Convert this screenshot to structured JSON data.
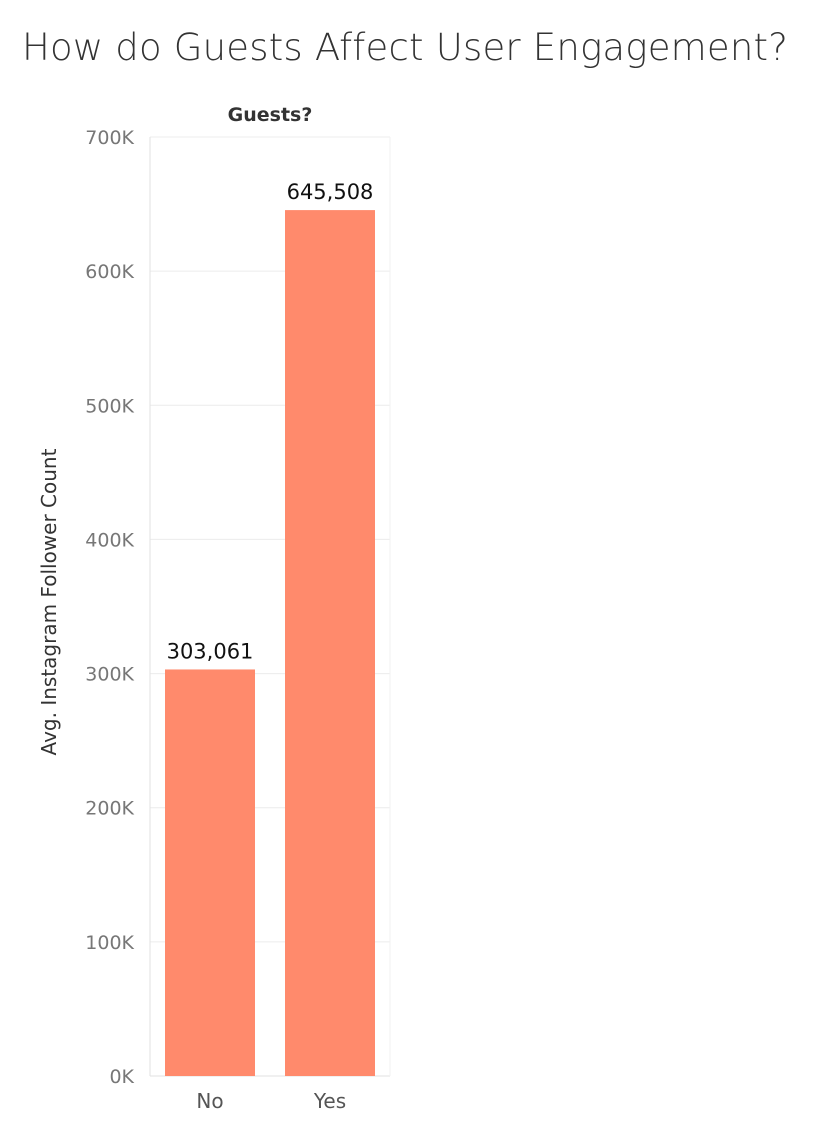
{
  "chart_data": {
    "type": "bar",
    "title": "How do Guests Affect User Engagement?",
    "column_header": "Guests?",
    "ylabel": "Avg. Instagram Follower Count",
    "xlabel": "",
    "categories": [
      "No",
      "Yes"
    ],
    "values": [
      303061,
      645508
    ],
    "value_labels": [
      "303,061",
      "645,508"
    ],
    "ylim": [
      0,
      700000
    ],
    "yticks": [
      0,
      100000,
      200000,
      300000,
      400000,
      500000,
      600000,
      700000
    ],
    "ytick_labels": [
      "0K",
      "100K",
      "200K",
      "300K",
      "400K",
      "500K",
      "600K",
      "700K"
    ],
    "grid": true,
    "bar_color": "#ff8a6c"
  }
}
